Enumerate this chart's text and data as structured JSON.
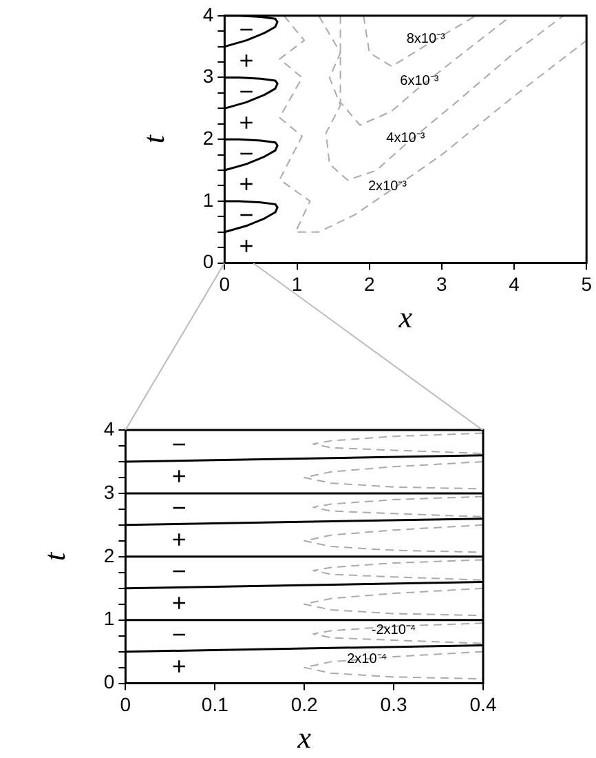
{
  "chart_data": [
    {
      "type": "line",
      "xlabel": "x",
      "ylabel": "t",
      "xlim": [
        0,
        5
      ],
      "xticks": [
        0,
        1,
        2,
        3,
        4,
        5
      ],
      "ylim": [
        0,
        4
      ],
      "yticks": [
        0,
        {
          "value": 0.25,
          "label": null
        },
        {
          "value": 0.5,
          "label": null
        },
        {
          "value": 0.75,
          "label": null
        },
        1,
        {
          "value": 1.25,
          "label": null
        },
        {
          "value": 1.5,
          "label": null
        },
        {
          "value": 1.75,
          "label": null
        },
        2,
        {
          "value": 2.25,
          "label": null
        },
        {
          "value": 2.5,
          "label": null
        },
        {
          "value": 2.75,
          "label": null
        },
        3,
        {
          "value": 3.25,
          "label": null
        },
        {
          "value": 3.5,
          "label": null
        },
        {
          "value": 3.75,
          "label": null
        },
        4
      ],
      "marker": "none",
      "grid": false,
      "legend": false,
      "series": [
        {
          "color": "#000000",
          "line_style": "solid",
          "x": [
            0,
            0.3,
            0.55,
            0.7,
            0.73,
            0.7,
            0.5,
            0.2,
            0
          ],
          "values": [
            0.5,
            0.6,
            0.72,
            0.82,
            0.9,
            0.95,
            0.98,
            1.0,
            1.0
          ]
        },
        {
          "color": "#000000",
          "line_style": "solid",
          "x": [
            0,
            0.3,
            0.55,
            0.7,
            0.73,
            0.7,
            0.5,
            0.2,
            0
          ],
          "values": [
            1.5,
            1.6,
            1.72,
            1.82,
            1.9,
            1.95,
            1.98,
            2.0,
            2.0
          ]
        },
        {
          "color": "#000000",
          "line_style": "solid",
          "x": [
            0,
            0.3,
            0.55,
            0.7,
            0.73,
            0.7,
            0.5,
            0.2,
            0
          ],
          "values": [
            2.5,
            2.6,
            2.72,
            2.82,
            2.9,
            2.95,
            2.98,
            3.0,
            3.0
          ]
        },
        {
          "color": "#000000",
          "line_style": "solid",
          "x": [
            0,
            0.3,
            0.55,
            0.7,
            0.73,
            0.7,
            0.5,
            0.2,
            0
          ],
          "values": [
            3.5,
            3.6,
            3.72,
            3.82,
            3.9,
            3.95,
            3.98,
            4.0,
            4.0
          ]
        },
        {
          "color": "#aaaaaa",
          "line_style": "dashed",
          "x": [
            0.82,
            1.1,
            0.76,
            1.07,
            0.76,
            1.07,
            0.76,
            1.18,
            0.98,
            1.3,
            1.8,
            2.25,
            3.0,
            4.0,
            5.0
          ],
          "values": [
            4.0,
            3.6,
            3.3,
            3.0,
            2.35,
            2.05,
            1.35,
            1.0,
            0.5,
            0.5,
            0.78,
            1.14,
            1.75,
            2.7,
            3.6
          ]
        },
        {
          "color": "#aaaaaa",
          "line_style": "dashed",
          "x": [
            1.3,
            1.6,
            1.45,
            1.6,
            1.4,
            1.45,
            1.7,
            2.1,
            2.5,
            3.2,
            4.0,
            4.68
          ],
          "values": [
            4.0,
            3.4,
            3.0,
            2.55,
            2.1,
            1.6,
            1.34,
            1.5,
            1.92,
            2.6,
            3.4,
            4.0
          ]
        },
        {
          "color": "#aaaaaa",
          "line_style": "dashed",
          "x": [
            1.6,
            1.6,
            1.6,
            1.87,
            2.3,
            2.69,
            3.3,
            3.96
          ],
          "values": [
            4.0,
            3.2,
            2.6,
            2.23,
            2.45,
            2.84,
            3.4,
            4.0
          ]
        },
        {
          "color": "#aaaaaa",
          "line_style": "dashed",
          "x": [
            1.92,
            2.0,
            2.31,
            2.78,
            3.47
          ],
          "values": [
            4.0,
            3.4,
            3.18,
            3.52,
            4.0
          ]
        }
      ],
      "annotations": [
        {
          "text": "8x10⁻³",
          "x": 2.78,
          "y": 3.62
        },
        {
          "text": "6x10⁻³",
          "x": 2.69,
          "y": 2.94
        },
        {
          "text": "4x10⁻³",
          "x": 2.5,
          "y": 2.02
        },
        {
          "text": "2x10⁻³",
          "x": 2.25,
          "y": 1.24
        },
        "+",
        "−",
        "+",
        "−",
        "+",
        "−",
        "+",
        "−"
      ]
    },
    {
      "type": "line",
      "xlabel": "x",
      "ylabel": "t",
      "xlim": [
        0,
        0.4
      ],
      "xticks": [
        0,
        0.1,
        0.2,
        0.3,
        0.4
      ],
      "ylim": [
        0,
        4
      ],
      "yticks": [
        0,
        {
          "value": 0.25,
          "label": null
        },
        {
          "value": 0.5,
          "label": null
        },
        {
          "value": 0.75,
          "label": null
        },
        1,
        {
          "value": 1.25,
          "label": null
        },
        {
          "value": 1.5,
          "label": null
        },
        {
          "value": 1.75,
          "label": null
        },
        2,
        {
          "value": 2.25,
          "label": null
        },
        {
          "value": 2.5,
          "label": null
        },
        {
          "value": 2.75,
          "label": null
        },
        3,
        {
          "value": 3.25,
          "label": null
        },
        {
          "value": 3.5,
          "label": null
        },
        {
          "value": 3.75,
          "label": null
        },
        4
      ],
      "marker": "none",
      "grid": false,
      "legend": false,
      "series": [
        {
          "color": "#000000",
          "line_style": "solid",
          "x": [
            0,
            0.4
          ],
          "values": [
            0.5,
            0.6
          ]
        },
        {
          "color": "#000000",
          "line_style": "solid",
          "x": [
            0,
            0.4
          ],
          "values": [
            1.0,
            1.0
          ]
        },
        {
          "color": "#000000",
          "line_style": "solid",
          "x": [
            0,
            0.4
          ],
          "values": [
            1.5,
            1.6
          ]
        },
        {
          "color": "#000000",
          "line_style": "solid",
          "x": [
            0,
            0.4
          ],
          "values": [
            2.0,
            2.0
          ]
        },
        {
          "color": "#000000",
          "line_style": "solid",
          "x": [
            0,
            0.4
          ],
          "values": [
            2.5,
            2.6
          ]
        },
        {
          "color": "#000000",
          "line_style": "solid",
          "x": [
            0,
            0.4
          ],
          "values": [
            3.0,
            3.0
          ]
        },
        {
          "color": "#000000",
          "line_style": "solid",
          "x": [
            0,
            0.4
          ],
          "values": [
            3.5,
            3.6
          ]
        },
        {
          "color": "#aaaaaa",
          "line_style": "dashed",
          "x": [
            0.4,
            0.3,
            0.23,
            0.2,
            0.23,
            0.3,
            0.4
          ],
          "values": [
            0.5,
            0.42,
            0.34,
            0.25,
            0.16,
            0.1,
            0.07
          ]
        },
        {
          "color": "#aaaaaa",
          "line_style": "dashed",
          "x": [
            0.4,
            0.3,
            0.23,
            0.21,
            0.23,
            0.3,
            0.4
          ],
          "values": [
            0.95,
            0.9,
            0.83,
            0.78,
            0.72,
            0.68,
            0.63
          ]
        },
        {
          "color": "#aaaaaa",
          "line_style": "dashed",
          "x": [
            0.4,
            0.3,
            0.23,
            0.2,
            0.23,
            0.3,
            0.4
          ],
          "values": [
            1.5,
            1.42,
            1.34,
            1.25,
            1.16,
            1.1,
            1.07
          ]
        },
        {
          "color": "#aaaaaa",
          "line_style": "dashed",
          "x": [
            0.4,
            0.3,
            0.23,
            0.21,
            0.23,
            0.3,
            0.4
          ],
          "values": [
            1.95,
            1.9,
            1.83,
            1.78,
            1.72,
            1.68,
            1.63
          ]
        },
        {
          "color": "#aaaaaa",
          "line_style": "dashed",
          "x": [
            0.4,
            0.3,
            0.23,
            0.2,
            0.23,
            0.3,
            0.4
          ],
          "values": [
            2.5,
            2.42,
            2.34,
            2.25,
            2.16,
            2.1,
            2.07
          ]
        },
        {
          "color": "#aaaaaa",
          "line_style": "dashed",
          "x": [
            0.4,
            0.3,
            0.23,
            0.21,
            0.23,
            0.3,
            0.4
          ],
          "values": [
            2.95,
            2.9,
            2.83,
            2.78,
            2.72,
            2.68,
            2.63
          ]
        },
        {
          "color": "#aaaaaa",
          "line_style": "dashed",
          "x": [
            0.4,
            0.3,
            0.23,
            0.2,
            0.23,
            0.3,
            0.4
          ],
          "values": [
            3.5,
            3.42,
            3.34,
            3.25,
            3.16,
            3.1,
            3.07
          ]
        },
        {
          "color": "#aaaaaa",
          "line_style": "dashed",
          "x": [
            0.4,
            0.3,
            0.23,
            0.21,
            0.23,
            0.3,
            0.4
          ],
          "values": [
            3.95,
            3.9,
            3.83,
            3.78,
            3.72,
            3.68,
            3.63
          ]
        }
      ],
      "annotations": [
        {
          "text": "-2x10⁻⁴",
          "x": 0.3,
          "y": 0.84
        },
        {
          "text": "2x10⁻⁴",
          "x": 0.27,
          "y": 0.38
        },
        "+",
        "−",
        "+",
        "−",
        "+",
        "−",
        "+",
        "−"
      ]
    }
  ]
}
